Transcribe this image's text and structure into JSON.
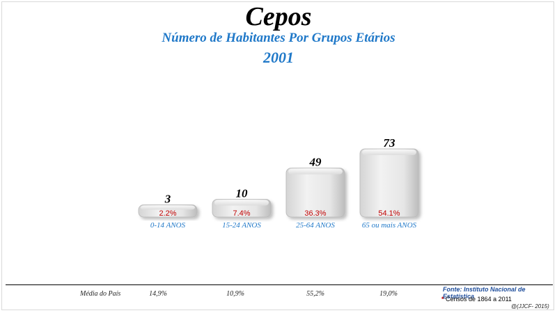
{
  "chart_data": {
    "type": "bar",
    "title": "Cepos",
    "subtitle": "Número de Habitantes Por Grupos Etários",
    "year": "2001",
    "categories": [
      "0-14 ANOS",
      "15-24 ANOS",
      "25-64 ANOS",
      "65 ou mais ANOS"
    ],
    "values": [
      3,
      10,
      49,
      73
    ],
    "value_labels": [
      "3",
      "10",
      "49",
      "73"
    ],
    "percent_labels": [
      "2.2%",
      "7.4%",
      "36.3%",
      "54.1%"
    ],
    "xlabel": "",
    "ylabel": "",
    "ylim": [
      0,
      73
    ],
    "grid": false,
    "legend": "none",
    "colors": {
      "bar": "#e6e6e6",
      "value_text": "#000000",
      "percent_text": "#c00000",
      "category_text": "#1f78c8"
    }
  },
  "footer": {
    "media_label": "Média do País",
    "media_values": [
      "14,9%",
      "10,9%",
      "55,2%",
      "19,0%"
    ],
    "source": "Fonte: Instituto Nacional de Estatística",
    "censos_star": "*",
    "censos_text": "Censos de 1864 a 2011",
    "copyright": "@(JJCF- 2015)"
  }
}
